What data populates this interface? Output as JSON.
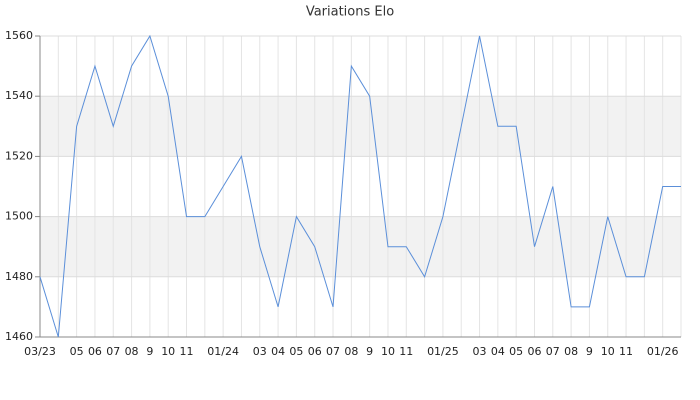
{
  "chart_data": {
    "type": "line",
    "title": "Variations Elo",
    "categories": [
      "03/23",
      null,
      "05",
      "06",
      "07",
      "08",
      "9",
      "10",
      "11",
      null,
      "01/24",
      null,
      "03",
      "04",
      "05",
      "06",
      "07",
      "08",
      "9",
      "10",
      "11",
      null,
      "01/25",
      null,
      "03",
      "04",
      "05",
      "06",
      "07",
      "08",
      "9",
      "10",
      "11",
      null,
      "01/26",
      null
    ],
    "series": [
      {
        "name": "Elo",
        "color": "#5b8fd9",
        "values": [
          1480,
          1460,
          1530,
          1550,
          1530,
          1550,
          1560,
          1540,
          1500,
          1500,
          1510,
          1520,
          1490,
          1470,
          1500,
          1490,
          1470,
          1550,
          1540,
          1490,
          1490,
          1480,
          1500,
          1530,
          1560,
          1530,
          1530,
          1490,
          1510,
          1470,
          1470,
          1500,
          1480,
          1480,
          1510,
          1510
        ]
      }
    ],
    "ylim": [
      1460,
      1560
    ],
    "yticks": [
      1460,
      1480,
      1500,
      1520,
      1540,
      1560
    ],
    "grid": true
  }
}
